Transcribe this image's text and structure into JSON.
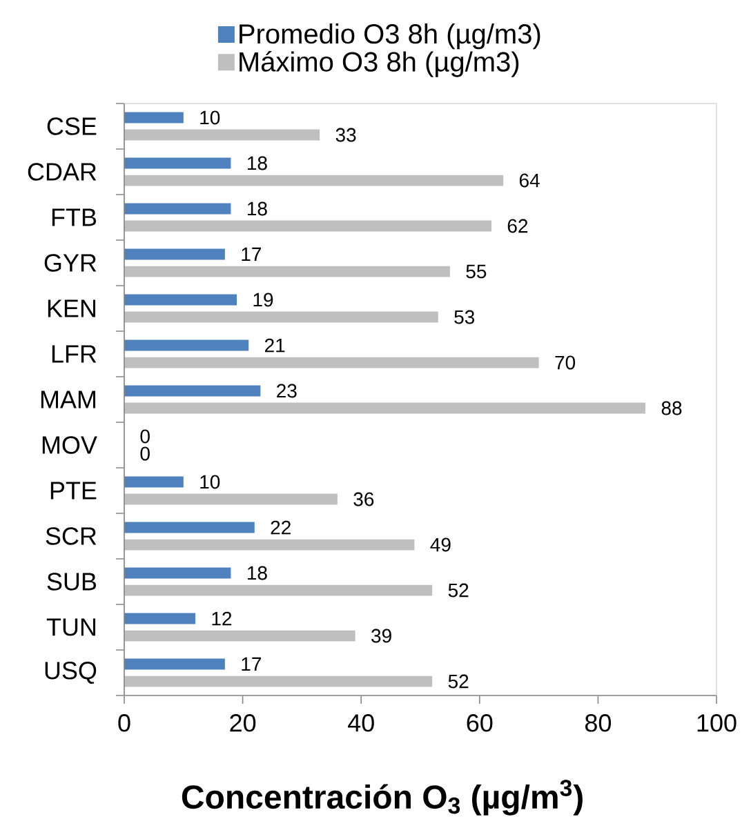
{
  "chart_data": {
    "type": "bar",
    "orientation": "horizontal",
    "categories": [
      "CSE",
      "CDAR",
      "FTB",
      "GYR",
      "KEN",
      "LFR",
      "MAM",
      "MOV",
      "PTE",
      "SCR",
      "SUB",
      "TUN",
      "USQ"
    ],
    "series": [
      {
        "name": "Promedio O3 8h (µg/m3)",
        "color": "#4f81bd",
        "values": [
          10,
          18,
          18,
          17,
          19,
          21,
          23,
          0,
          10,
          22,
          18,
          12,
          17
        ]
      },
      {
        "name": "Máximo O3 8h (µg/m3)",
        "color": "#bfbfbf",
        "values": [
          33,
          64,
          62,
          55,
          53,
          70,
          88,
          0,
          36,
          49,
          52,
          39,
          52
        ]
      }
    ],
    "xlabel": "Concentración O$_{3}$ (µg/m$^{3}$)",
    "xlim": [
      0,
      100
    ],
    "xticks": [
      0,
      20,
      40,
      60,
      80,
      100
    ],
    "legend": "top",
    "data_labels": true
  }
}
